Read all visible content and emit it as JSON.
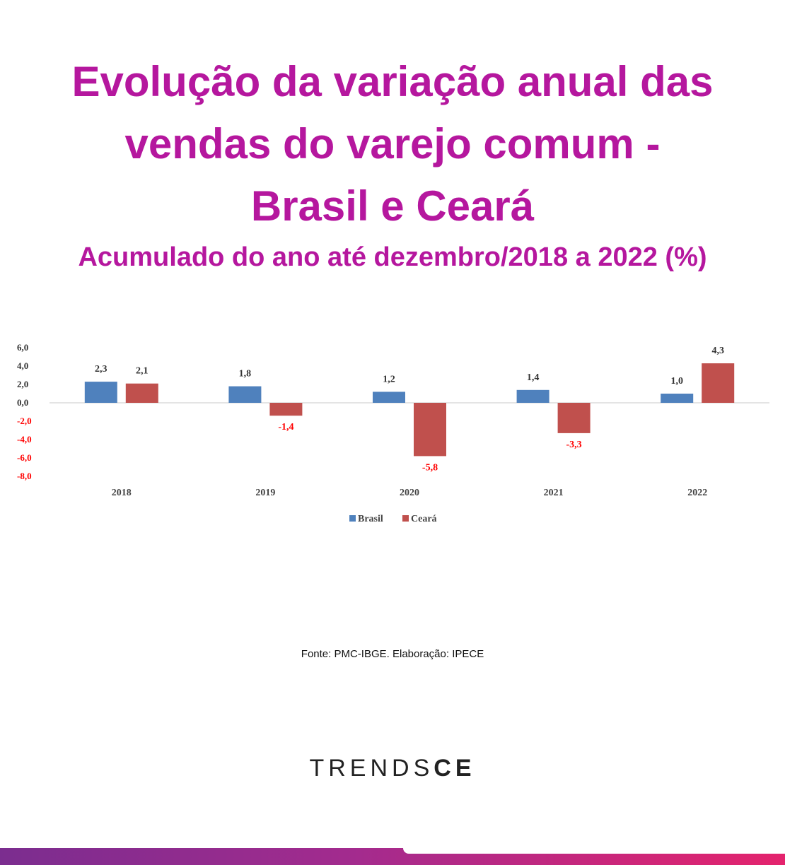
{
  "header": {
    "title_lines": [
      "Evolução da variação anual das",
      "vendas do varejo comum -",
      "Brasil e Ceará"
    ],
    "subtitle": "Acumulado do ano até dezembro/2018 a 2022 (%)"
  },
  "footer": {
    "source": "Fonte: PMC-IBGE. Elaboração: IPECE",
    "brand_light": "TRENDS",
    "brand_bold": "CE"
  },
  "colors": {
    "title": "#b5179e",
    "brasil": "#4f81bd",
    "ceara": "#c0504d",
    "negative_label": "#ff0000"
  },
  "chart_data": {
    "type": "bar",
    "categories": [
      "2018",
      "2019",
      "2020",
      "2021",
      "2022"
    ],
    "series": [
      {
        "name": "Brasil",
        "values": [
          2.3,
          1.8,
          1.2,
          1.4,
          1.0
        ],
        "labels": [
          "2,3",
          "1,8",
          "1,2",
          "1,4",
          "1,0"
        ]
      },
      {
        "name": "Ceará",
        "values": [
          2.1,
          -1.4,
          -5.8,
          -3.3,
          4.3
        ],
        "labels": [
          "2,1",
          "-1,4",
          "-5,8",
          "-3,3",
          "4,3"
        ]
      }
    ],
    "ylim": [
      -8,
      6
    ],
    "yticks": [
      6,
      4,
      2,
      0,
      -2,
      -4,
      -6,
      -8
    ],
    "ytick_labels": [
      "6,0",
      "4,0",
      "2,0",
      "0,0",
      "-2,0",
      "-4,0",
      "-6,0",
      "-8,0"
    ],
    "xlabel": "",
    "ylabel": "",
    "legend_position": "bottom-center",
    "grid": false
  }
}
